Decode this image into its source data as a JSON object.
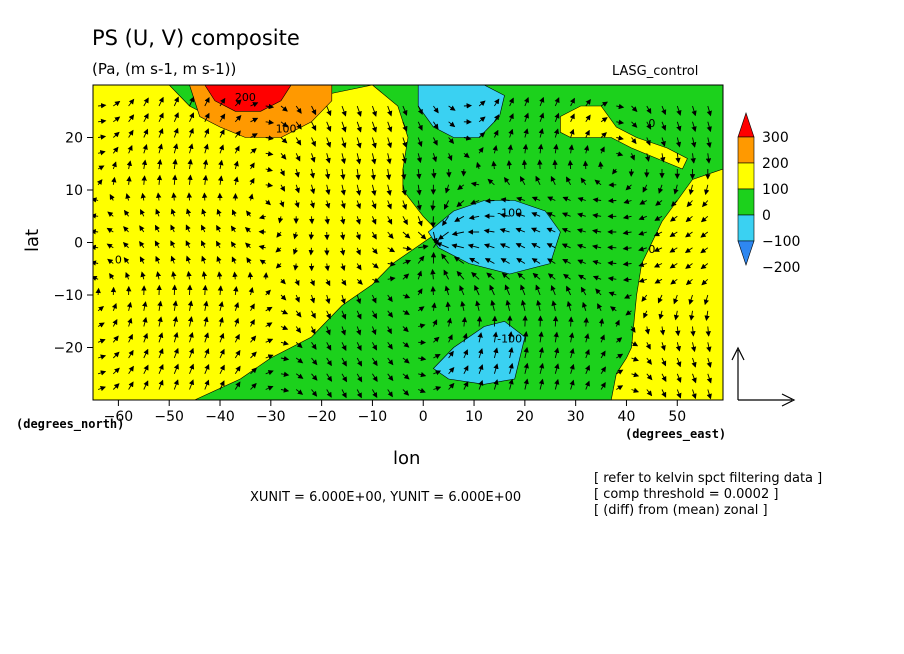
{
  "header": {
    "title": "PS (U, V) composite",
    "units": "(Pa, (m s-1, m s-1))",
    "model": "LASG_control"
  },
  "axes": {
    "xlabel": "lon",
    "ylabel": "lat",
    "x_unit_label": "(degrees_east)",
    "y_unit_label": "(degrees_north)"
  },
  "footer": {
    "scale": "XUNIT = 6.000E+00, YUNIT = 6.000E+00",
    "notes": [
      "[ refer to kelvin spct filtering data ]",
      "[ comp threshold = 0.0002 ]",
      "[ (diff) from (mean) zonal ]"
    ]
  },
  "chart_data": {
    "type": "heatmap",
    "title": "PS (U, V) composite",
    "subtitle": "(Pa, (m s-1, m s-1))",
    "xlabel": "lon",
    "ylabel": "lat",
    "xlim": [
      -65,
      59
    ],
    "ylim": [
      -30,
      30
    ],
    "x_ticks": [
      -60,
      -50,
      -40,
      -30,
      -20,
      -10,
      0,
      10,
      20,
      30,
      40,
      50
    ],
    "y_ticks": [
      -20,
      -10,
      0,
      10,
      20
    ],
    "colorbar": {
      "levels": [
        -200,
        -100,
        0,
        100,
        200,
        300
      ],
      "colors": [
        "#2e87f0",
        "#3ad1f2",
        "#1cd11c",
        "#ffff00",
        "#ff9900",
        "#ff0000"
      ],
      "tick_labels": [
        "300",
        "200",
        "100",
        "0",
        "−100",
        "−200"
      ]
    },
    "background_value": -50,
    "regions": [
      {
        "level": 50,
        "polygon": [
          [
            -65,
            30
          ],
          [
            -50,
            30
          ],
          [
            -46,
            26
          ],
          [
            -38,
            22
          ],
          [
            -28,
            22
          ],
          [
            -20,
            28
          ],
          [
            -10,
            30
          ],
          [
            -5,
            26
          ],
          [
            -3,
            20
          ],
          [
            -4,
            14
          ],
          [
            -4,
            10
          ],
          [
            0,
            5
          ],
          [
            3,
            2
          ],
          [
            0,
            0
          ],
          [
            -6,
            -4
          ],
          [
            -10,
            -8
          ],
          [
            -16,
            -12
          ],
          [
            -22,
            -18
          ],
          [
            -30,
            -22
          ],
          [
            -36,
            -26
          ],
          [
            -45,
            -30
          ],
          [
            -65,
            -30
          ]
        ]
      },
      {
        "level": 50,
        "polygon": [
          [
            59,
            14
          ],
          [
            53,
            12
          ],
          [
            50,
            8
          ],
          [
            47,
            4
          ],
          [
            45,
            0
          ],
          [
            43,
            -4
          ],
          [
            42,
            -10
          ],
          [
            41,
            -20
          ],
          [
            40,
            -22
          ],
          [
            38,
            -25
          ],
          [
            37,
            -30
          ],
          [
            59,
            -30
          ]
        ]
      },
      {
        "level": 50,
        "polygon": [
          [
            27,
            24
          ],
          [
            31,
            26
          ],
          [
            35,
            26
          ],
          [
            38,
            22
          ],
          [
            42,
            20
          ],
          [
            48,
            18
          ],
          [
            52,
            16
          ],
          [
            51,
            14
          ],
          [
            46,
            16
          ],
          [
            41,
            18
          ],
          [
            37,
            20
          ],
          [
            33,
            20
          ],
          [
            29,
            20
          ],
          [
            27,
            21
          ]
        ]
      },
      {
        "level": 150,
        "polygon": [
          [
            -46,
            30
          ],
          [
            -18,
            30
          ],
          [
            -18,
            27
          ],
          [
            -22,
            23
          ],
          [
            -28,
            20
          ],
          [
            -35,
            20
          ],
          [
            -40,
            22
          ],
          [
            -44,
            24
          ]
        ]
      },
      {
        "level": 250,
        "polygon": [
          [
            -43,
            30
          ],
          [
            -26,
            30
          ],
          [
            -28,
            27
          ],
          [
            -32,
            25
          ],
          [
            -37,
            25
          ],
          [
            -41,
            27
          ]
        ]
      },
      {
        "level": -150,
        "polygon": [
          [
            -1,
            30
          ],
          [
            12,
            30
          ],
          [
            16,
            28
          ],
          [
            15,
            24
          ],
          [
            11,
            20
          ],
          [
            6,
            20
          ],
          [
            2,
            22
          ],
          [
            -1,
            26
          ]
        ]
      },
      {
        "level": -150,
        "polygon": [
          [
            1,
            2
          ],
          [
            6,
            6
          ],
          [
            12,
            8
          ],
          [
            18,
            8
          ],
          [
            24,
            6
          ],
          [
            27,
            2
          ],
          [
            25,
            -4
          ],
          [
            17,
            -6
          ],
          [
            9,
            -4
          ],
          [
            3,
            -1
          ]
        ]
      },
      {
        "level": -150,
        "polygon": [
          [
            2,
            -24
          ],
          [
            6,
            -20
          ],
          [
            12,
            -16
          ],
          [
            16,
            -15
          ],
          [
            20,
            -18
          ],
          [
            18,
            -26
          ],
          [
            12,
            -27
          ],
          [
            5,
            -26
          ]
        ]
      }
    ],
    "contour_labels": [
      {
        "x": -27,
        "y": 21,
        "text": "100"
      },
      {
        "x": 17,
        "y": 5,
        "text": "-100"
      },
      {
        "x": 17,
        "y": -19,
        "text": "-100"
      },
      {
        "x": 45,
        "y": 22,
        "text": "0"
      },
      {
        "x": -60,
        "y": -4,
        "text": "0"
      },
      {
        "x": 45,
        "y": -2,
        "text": "0"
      },
      {
        "x": -35,
        "y": 27,
        "text": "200"
      }
    ],
    "vector_field": {
      "u": "u",
      "v": "v",
      "grid": {
        "x_start": -64,
        "x_end": 58,
        "x_step": 3,
        "y_start": -28,
        "y_end": 28,
        "y_step": 3
      },
      "reference_vector": {
        "x_unit": 6.0,
        "y_unit": 6.0
      }
    }
  }
}
